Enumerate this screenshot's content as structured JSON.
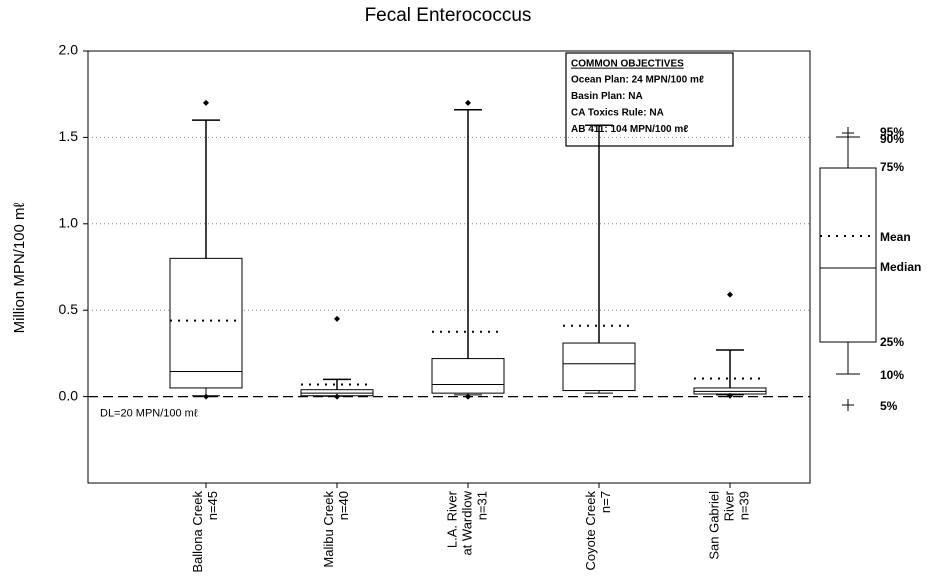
{
  "chart_data": {
    "type": "box",
    "title": "Fecal Enterococcus",
    "y_label": "Million MPN/100 mℓ",
    "categories": [
      [
        "Ballona Creek",
        "n=45"
      ],
      [
        "Malibu Creek",
        "n=40"
      ],
      [
        "L.A. River",
        "at Wardlow",
        "n=31"
      ],
      [
        "Coyote Creek",
        "n=7"
      ],
      [
        "San Gabriel",
        "River",
        "n=39"
      ]
    ],
    "boxes": [
      {
        "p5": 0.0,
        "p10": 0.005,
        "p25": 0.05,
        "median": 0.145,
        "p75": 0.8,
        "p90": 1.6,
        "p95": 1.7,
        "mean": 0.44
      },
      {
        "p5": 0.0,
        "p10": 0.002,
        "p25": 0.005,
        "median": 0.02,
        "p75": 0.04,
        "p90": 0.1,
        "p95": 0.45,
        "mean": 0.07
      },
      {
        "p5": 0.0,
        "p10": 0.01,
        "p25": 0.02,
        "median": 0.07,
        "p75": 0.22,
        "p90": 1.66,
        "p95": 1.7,
        "mean": 0.375
      },
      {
        "p5": null,
        "p10": 0.02,
        "p25": 0.035,
        "median": 0.19,
        "p75": 0.31,
        "p90": 1.57,
        "p95": null,
        "mean": 0.41
      },
      {
        "p5": 0.005,
        "p10": 0.01,
        "p25": 0.015,
        "median": 0.03,
        "p75": 0.05,
        "p90": 0.27,
        "p95": 0.59,
        "mean": 0.105
      }
    ],
    "ylim": [
      -0.5,
      2.0
    ],
    "yticks": [
      {
        "value": 0,
        "label": "0.0"
      },
      {
        "value": 0.5,
        "label": "0.5"
      },
      {
        "value": 1,
        "label": "1.0"
      },
      {
        "value": 1.5,
        "label": "1.5"
      },
      {
        "value": 2,
        "label": "2.0"
      }
    ],
    "grid": true,
    "dl_value": 2e-05,
    "dl_label": "DL=20 MPN/100 mℓ",
    "objectives": {
      "title": "COMMON OBJECTIVES",
      "lines": [
        "Ocean Plan: 24 MPN/100 mℓ",
        "Basin Plan: NA",
        "CA Toxics Rule: NA",
        "AB 411: 104 MPN/100 mℓ"
      ]
    },
    "key": {
      "labels": [
        "95%",
        "90%",
        "75%",
        "Mean",
        "Median",
        "25%",
        "10%",
        "5%"
      ]
    }
  }
}
